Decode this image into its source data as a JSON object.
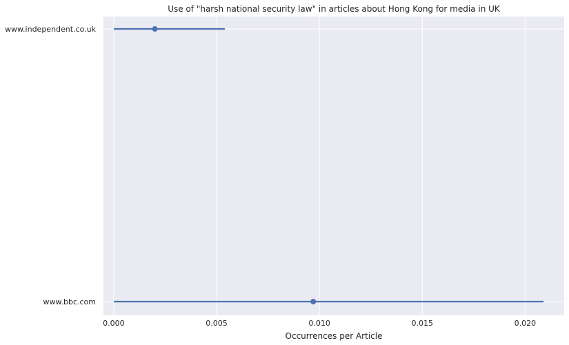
{
  "chart_data": {
    "type": "point-range",
    "title": "Use of \"harsh national security law\" in articles about Hong Kong for media in UK",
    "xlabel": "Occurrences per Article",
    "ylabel": "",
    "xlim": [
      -0.0005,
      0.0219
    ],
    "xticks": [
      "0.000",
      "0.005",
      "0.010",
      "0.015",
      "0.020"
    ],
    "xtick_values": [
      0.0,
      0.005,
      0.01,
      0.015,
      0.02
    ],
    "grid": true,
    "categories": [
      "www.independent.co.uk",
      "www.bbc.com"
    ],
    "points": [
      {
        "category": "www.independent.co.uk",
        "value": 0.002,
        "ci_low": 0.0,
        "ci_high": 0.0054
      },
      {
        "category": "www.bbc.com",
        "value": 0.0097,
        "ci_low": 0.0,
        "ci_high": 0.0209
      }
    ],
    "colors": {
      "plot_background": "#EAEAF2",
      "grid": "#FFFFFF",
      "series": "#4C72B0"
    }
  }
}
